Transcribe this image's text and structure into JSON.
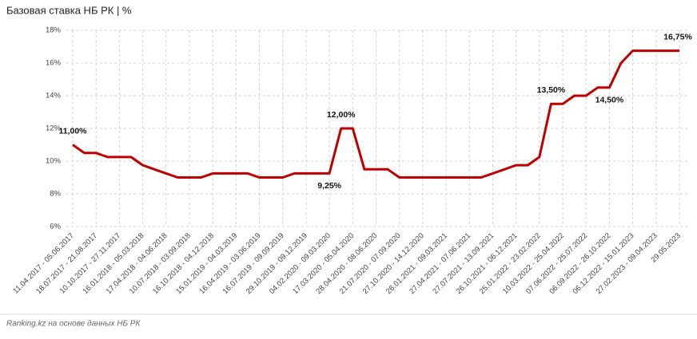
{
  "chart_data": {
    "type": "line",
    "title": "Базовая ставка НБ РК | %",
    "source": "Ranking.kz на основе данных НБ РК",
    "categories": [
      "11.04.2017 - 05.06.2017",
      null,
      "18.07.2017 - 21.08.2017",
      null,
      "10.10.2017 - 27.11.2017",
      null,
      "16.01.2018 - 05.03.2018",
      null,
      "17.04.2018 - 04.06.2018",
      null,
      "10.07.2018 - 03.09.2018",
      null,
      "16.10.2018 - 04.12.2018",
      null,
      "15.01.2019 - 04.03.2019",
      null,
      "16.04.2019 - 03.06.2019",
      null,
      "16.07.2019 - 09.09.2019",
      null,
      "29.10.2019 - 09.12.2019",
      null,
      "04.02.2020 - 09.03.2020",
      null,
      "17.03.2020 - 05.04.2020",
      null,
      "28.04.2020 - 08.06.2020",
      null,
      "21.07.2020 - 07.09.2020",
      null,
      "27.10.2020 - 14.12.2020",
      null,
      "26.01.2021 - 09.03.2021",
      null,
      "27.04.2021 - 07.06.2021",
      null,
      "27.07.2021 - 13.09.2021",
      null,
      "26.10.2021 - 06.12.2021",
      null,
      "25.01.2022 - 23.02.2022",
      null,
      "10.03.2022 - 25.04.2022",
      null,
      "07.06.2022 - 25.07.2022",
      null,
      "06.09.2022 - 26.10.2022",
      null,
      "06.12.2022 - 15.01.2023",
      null,
      "27.02.2023 - 09.04.2023",
      null,
      "29.05.2023"
    ],
    "values": [
      11.0,
      10.5,
      10.5,
      10.25,
      10.25,
      10.25,
      9.75,
      9.5,
      9.25,
      9.0,
      9.0,
      9.0,
      9.25,
      9.25,
      9.25,
      9.25,
      9.0,
      9.0,
      9.0,
      9.25,
      9.25,
      9.25,
      9.25,
      12.0,
      12.0,
      9.5,
      9.5,
      9.5,
      9.0,
      9.0,
      9.0,
      9.0,
      9.0,
      9.0,
      9.0,
      9.0,
      9.25,
      9.5,
      9.75,
      9.75,
      10.25,
      13.5,
      13.5,
      14.0,
      14.0,
      14.5,
      14.5,
      16.0,
      16.75,
      16.75,
      16.75,
      16.75,
      16.75
    ],
    "value_labels": [
      "11,00%",
      null,
      null,
      null,
      null,
      null,
      null,
      null,
      null,
      null,
      null,
      null,
      null,
      null,
      null,
      null,
      null,
      null,
      null,
      null,
      null,
      null,
      "9,25%",
      "12,00%",
      null,
      null,
      null,
      null,
      null,
      null,
      null,
      null,
      null,
      null,
      null,
      null,
      null,
      null,
      null,
      null,
      null,
      "13,50%",
      null,
      null,
      null,
      null,
      "14,50%",
      null,
      null,
      null,
      null,
      null,
      "16,75%"
    ],
    "color": "#c00000",
    "ylim": [
      6,
      18
    ],
    "yticks": [
      {
        "value": 6,
        "label": "6%"
      },
      {
        "value": 8,
        "label": "8%"
      },
      {
        "value": 10,
        "label": "10%"
      },
      {
        "value": 12,
        "label": "12%"
      },
      {
        "value": 14,
        "label": "14%"
      },
      {
        "value": 16,
        "label": "16%"
      },
      {
        "value": 18,
        "label": "18%"
      }
    ],
    "grid": true
  }
}
